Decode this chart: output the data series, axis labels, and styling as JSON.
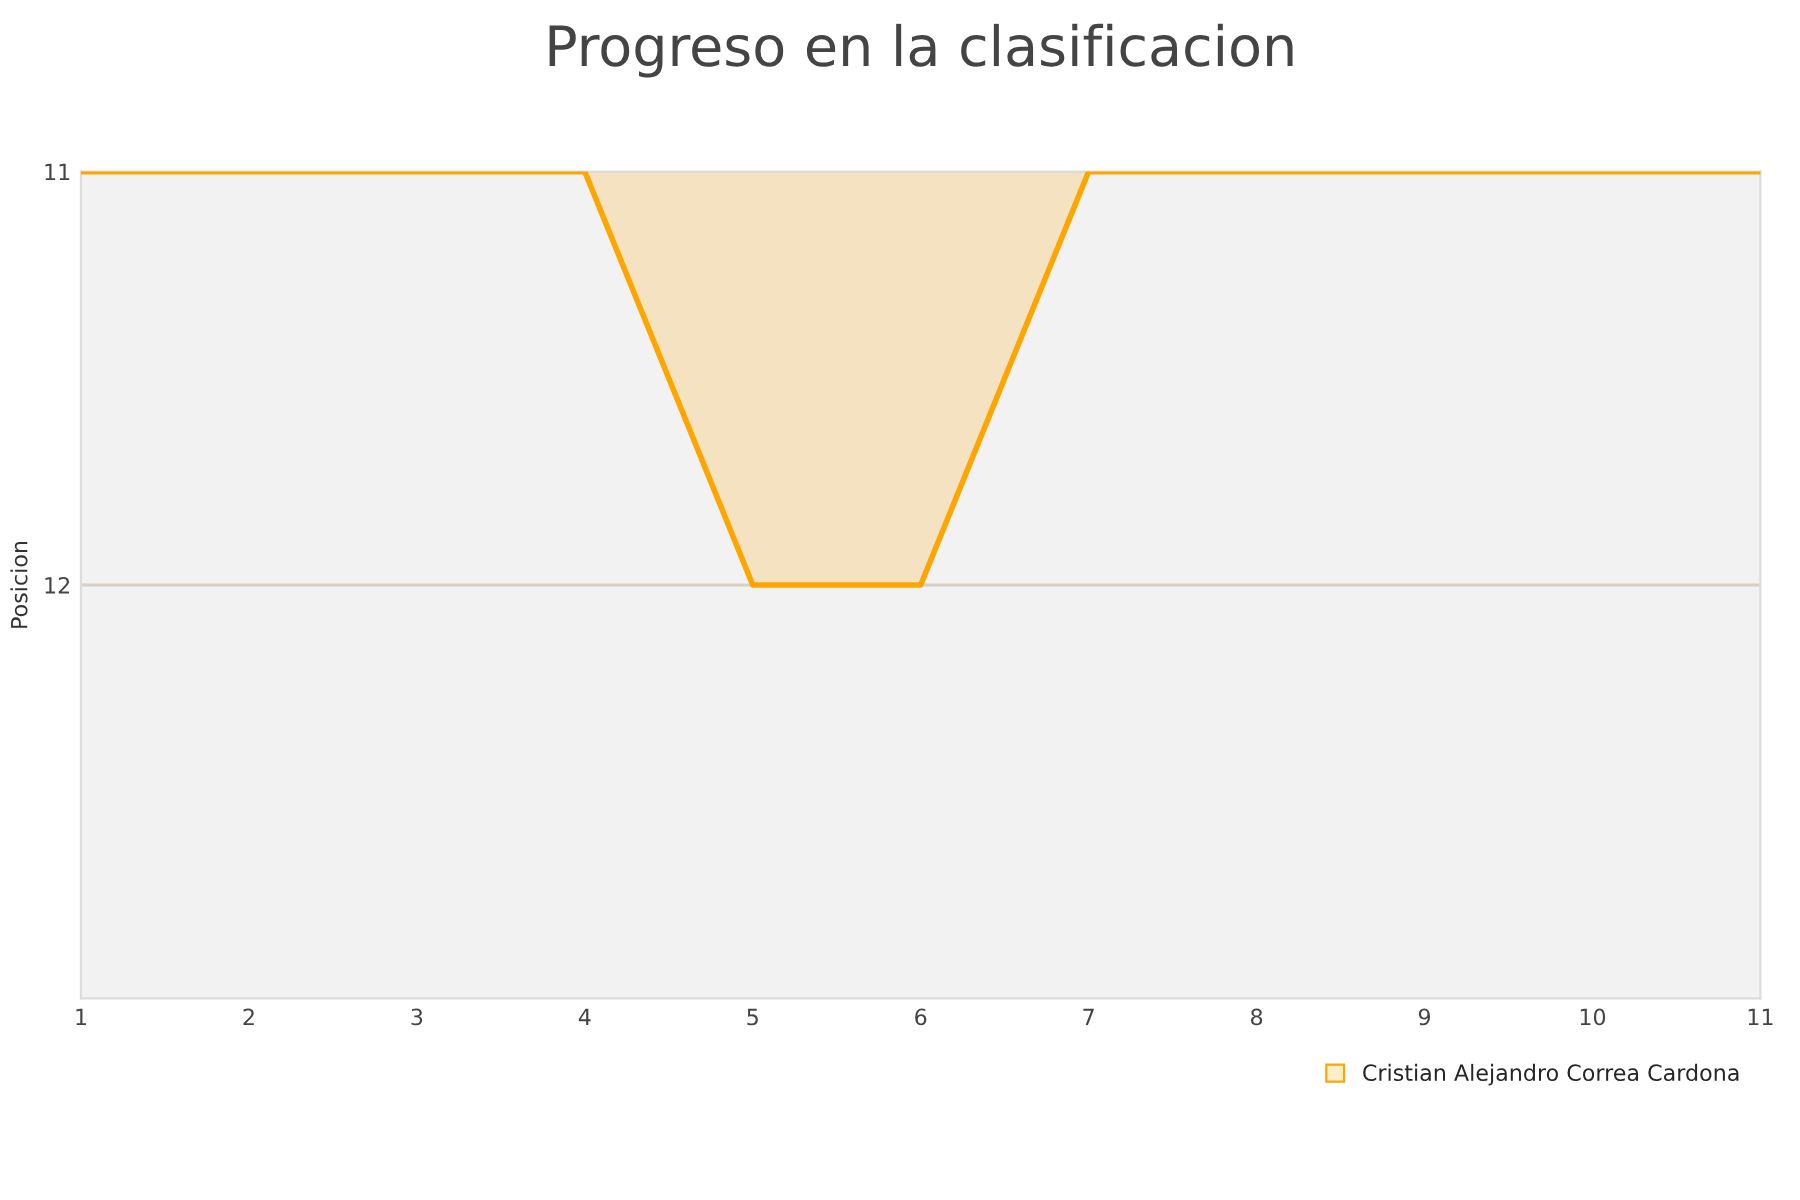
{
  "chart_data": {
    "type": "area",
    "title": "Progreso en la clasificacion",
    "ylabel": "Posicion",
    "x": [
      1,
      2,
      3,
      4,
      5,
      6,
      7,
      8,
      9,
      10,
      11
    ],
    "series": [
      {
        "name": "Cristian Alejandro Correa Cardona",
        "color": "#ffa500",
        "values": [
          11,
          11,
          11,
          11,
          12,
          12,
          11,
          11,
          11,
          11,
          11
        ]
      }
    ],
    "xlim": [
      1,
      11
    ],
    "xticks": [
      1,
      2,
      3,
      4,
      5,
      6,
      7,
      8,
      9,
      10,
      11
    ],
    "ylim": [
      13,
      11
    ],
    "yticks": [
      11,
      12
    ],
    "grid": "y",
    "legend": "bottom right"
  }
}
